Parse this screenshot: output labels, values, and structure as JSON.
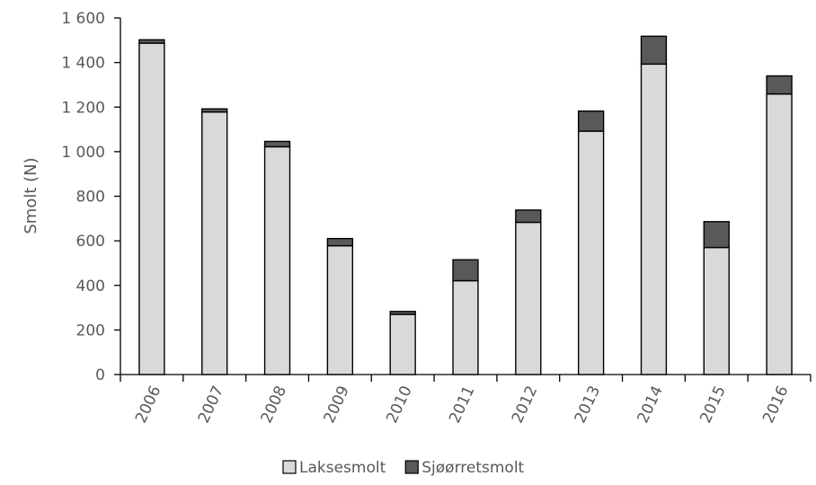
{
  "chart_data": {
    "type": "bar",
    "stacked": true,
    "title": "",
    "xlabel": "",
    "ylabel": "Smolt (N)",
    "ylim": [
      0,
      1600
    ],
    "yticks": [
      0,
      200,
      400,
      600,
      800,
      1000,
      1200,
      1400,
      1600
    ],
    "ytick_labels": [
      "0",
      "200",
      "400",
      "600",
      "800",
      "1 000",
      "1 200",
      "1 400",
      "1 600"
    ],
    "categories": [
      "2006",
      "2007",
      "2008",
      "2009",
      "2010",
      "2011",
      "2012",
      "2013",
      "2014",
      "2015",
      "2016"
    ],
    "series": [
      {
        "name": "Laksesmolt",
        "color": "#d9d9d9",
        "values": [
          1487,
          1178,
          1022,
          578,
          270,
          421,
          683,
          1092,
          1393,
          570,
          1259
        ]
      },
      {
        "name": "Sjøørretsmolt",
        "color": "#595959",
        "values": [
          15,
          14,
          24,
          32,
          13,
          94,
          55,
          90,
          125,
          116,
          81
        ]
      }
    ],
    "grid": false,
    "legend": "bottom"
  }
}
